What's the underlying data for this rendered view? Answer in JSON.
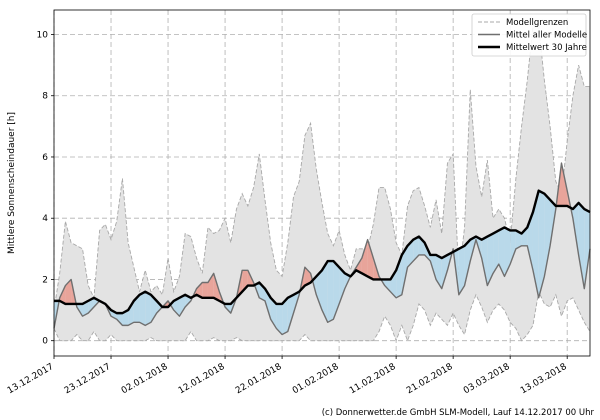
{
  "chart_data": {
    "type": "area",
    "ylabel": "Mittlere Sonnenscheindauer [h]",
    "xlabel": "",
    "ylim": [
      -0.5,
      10.8
    ],
    "yticks": [
      0,
      2,
      4,
      6,
      8,
      10
    ],
    "xlim": [
      0,
      94
    ],
    "x_start_label": "13.12.2017",
    "xticks": [
      {
        "x": 0,
        "label": "13.12.2017"
      },
      {
        "x": 10,
        "label": "23.12.2017"
      },
      {
        "x": 20,
        "label": "02.01.2018"
      },
      {
        "x": 30,
        "label": "12.01.2018"
      },
      {
        "x": 40,
        "label": "22.01.2018"
      },
      {
        "x": 50,
        "label": "01.02.2018"
      },
      {
        "x": 60,
        "label": "11.02.2018"
      },
      {
        "x": 70,
        "label": "21.02.2018"
      },
      {
        "x": 80,
        "label": "03.03.2018"
      },
      {
        "x": 90,
        "label": "13.03.2018"
      }
    ],
    "grid": true,
    "legend_position": "top-right",
    "colors": {
      "band": "#e3e3e3",
      "band_edge": "#a8a8a8",
      "above": "#e8a49a",
      "below": "#b9d9ea",
      "model_mean": "#6f6f6f",
      "avg30": "#000000"
    },
    "series": [
      {
        "name": "Modellgrenzen",
        "style": "dashed-band",
        "min": [
          0.4,
          0.0,
          0.0,
          0.0,
          0.2,
          0.0,
          0.0,
          0.3,
          0.0,
          0.0,
          0.2,
          0.0,
          0.0,
          0.0,
          0.0,
          0.0,
          0.0,
          0.1,
          0.0,
          0.0,
          0.0,
          0.0,
          0.0,
          0.0,
          0.3,
          0.0,
          0.0,
          0.0,
          0.1,
          0.0,
          0.0,
          0.0,
          0.1,
          0.0,
          0.0,
          0.0,
          0.0,
          0.0,
          0.0,
          0.0,
          0.0,
          0.0,
          0.0,
          0.0,
          0.2,
          0.0,
          0.0,
          0.0,
          0.0,
          0.0,
          0.0,
          0.0,
          0.0,
          0.0,
          0.0,
          0.0,
          0.0,
          0.3,
          0.8,
          0.5,
          0.0,
          0.5,
          0.0,
          0.5,
          1.2,
          1.0,
          0.5,
          0.9,
          0.7,
          0.5,
          0.9,
          0.5,
          0.2,
          1.0,
          1.5,
          1.1,
          0.6,
          1.0,
          1.2,
          1.0,
          0.6,
          0.4,
          0.0,
          0.2,
          0.5,
          1.6,
          1.2,
          1.1,
          1.5,
          0.8,
          1.3,
          1.4,
          1.0,
          0.6,
          0.3
        ],
        "max": [
          1.0,
          2.2,
          3.9,
          3.2,
          3.1,
          3.0,
          1.8,
          1.4,
          3.6,
          3.8,
          3.3,
          3.9,
          5.3,
          3.2,
          2.4,
          1.6,
          2.3,
          1.6,
          1.8,
          1.5,
          2.7,
          1.6,
          2.1,
          3.5,
          3.4,
          2.7,
          2.2,
          3.7,
          3.5,
          3.6,
          4.0,
          3.2,
          4.3,
          4.8,
          4.4,
          5.0,
          6.1,
          4.6,
          3.2,
          2.3,
          2.1,
          3.2,
          4.7,
          5.2,
          6.7,
          7.1,
          5.6,
          4.5,
          3.5,
          3.1,
          3.6,
          2.8,
          2.3,
          3.0,
          3.0,
          3.0,
          3.8,
          5.0,
          5.0,
          4.3,
          3.2,
          2.8,
          4.4,
          4.9,
          5.0,
          4.4,
          3.7,
          4.6,
          3.5,
          5.8,
          6.1,
          2.1,
          3.7,
          8.2,
          5.7,
          4.7,
          5.9,
          4.0,
          4.3,
          4.0,
          3.2,
          5.3,
          7.0,
          8.5,
          10.3,
          10.3,
          8.5,
          7.0,
          5.2,
          4.8,
          6.5,
          8.0,
          9.0,
          8.3,
          8.3
        ]
      },
      {
        "name": "Mittel aller Modelle",
        "style": "line",
        "values": [
          0.4,
          1.4,
          1.8,
          2.0,
          1.1,
          0.8,
          0.9,
          1.1,
          1.3,
          1.2,
          0.8,
          0.7,
          0.5,
          0.5,
          0.6,
          0.6,
          0.5,
          0.6,
          0.9,
          1.1,
          1.3,
          1.0,
          0.8,
          1.1,
          1.3,
          1.7,
          1.9,
          1.9,
          2.2,
          1.6,
          1.1,
          0.9,
          1.4,
          2.3,
          2.3,
          1.9,
          1.4,
          1.3,
          0.7,
          0.4,
          0.2,
          0.3,
          0.9,
          1.5,
          2.4,
          2.2,
          1.5,
          1.0,
          0.6,
          0.7,
          1.2,
          1.7,
          2.1,
          2.4,
          2.7,
          3.3,
          2.7,
          2.1,
          1.8,
          1.6,
          1.4,
          1.5,
          2.4,
          2.6,
          2.8,
          2.8,
          2.6,
          2.0,
          1.7,
          2.3,
          3.0,
          1.5,
          1.8,
          2.6,
          3.3,
          2.7,
          1.8,
          2.2,
          2.5,
          2.1,
          2.5,
          3.0,
          3.1,
          3.1,
          2.3,
          1.4,
          2.1,
          3.1,
          4.3,
          5.8,
          4.9,
          4.0,
          2.8,
          1.7,
          3.0
        ]
      },
      {
        "name": "Mittelwert 30 Jahre",
        "style": "thick-line",
        "values": [
          1.3,
          1.3,
          1.2,
          1.2,
          1.2,
          1.2,
          1.3,
          1.4,
          1.3,
          1.2,
          1.0,
          0.9,
          0.9,
          1.0,
          1.3,
          1.5,
          1.6,
          1.5,
          1.3,
          1.1,
          1.1,
          1.3,
          1.4,
          1.5,
          1.4,
          1.5,
          1.4,
          1.4,
          1.4,
          1.3,
          1.2,
          1.2,
          1.4,
          1.6,
          1.8,
          1.8,
          1.9,
          1.7,
          1.4,
          1.2,
          1.2,
          1.4,
          1.5,
          1.6,
          1.8,
          1.9,
          2.1,
          2.3,
          2.6,
          2.6,
          2.4,
          2.2,
          2.1,
          2.3,
          2.2,
          2.1,
          2.0,
          2.0,
          2.0,
          2.0,
          2.3,
          2.8,
          3.1,
          3.3,
          3.4,
          3.2,
          2.8,
          2.8,
          2.7,
          2.8,
          2.9,
          3.0,
          3.1,
          3.3,
          3.4,
          3.3,
          3.4,
          3.5,
          3.6,
          3.7,
          3.6,
          3.6,
          3.5,
          3.7,
          4.2,
          4.9,
          4.8,
          4.6,
          4.4,
          4.4,
          4.4,
          4.3,
          4.5,
          4.3,
          4.2
        ]
      }
    ],
    "legend": [
      "Modellgrenzen",
      "Mittel aller Modelle",
      "Mittelwert 30 Jahre"
    ]
  },
  "footer": {
    "credit": "(c) Donnerwetter.de GmbH SLM-Modell, Lauf 14.12.2017 00 Uhr"
  }
}
